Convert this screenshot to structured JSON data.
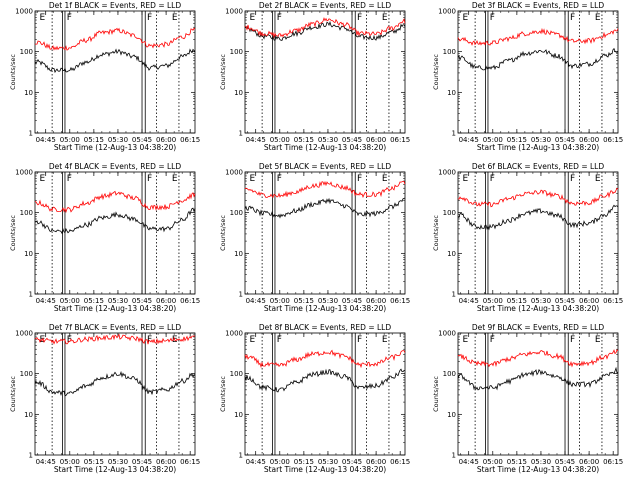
{
  "figure": {
    "title_suffix": "BLACK = Events, RED = LLD",
    "xlabel": "Start Time (12-Aug-13 04:38:20)",
    "ylabel": "Counts/sec",
    "x_ticks": [
      "04:45",
      "05:00",
      "05:15",
      "05:30",
      "05:45",
      "06:00",
      "06:15"
    ],
    "y_ticks": [
      "1",
      "10",
      "100",
      "1000"
    ],
    "marker_labels": [
      "E",
      "F",
      "F",
      "E"
    ],
    "colors": {
      "events": "#000000",
      "lld": "#ff0000",
      "axes": "#000000"
    }
  },
  "chart_data": [
    {
      "type": "line",
      "title": "Det 1f BLACK = Events, RED = LLD",
      "y_scale": "log",
      "ylim": [
        1,
        1000
      ],
      "x": [
        "04:40",
        "04:50",
        "05:00",
        "05:10",
        "05:20",
        "05:30",
        "05:40",
        "05:50",
        "06:00",
        "06:10",
        "06:17"
      ],
      "series": [
        {
          "name": "Events",
          "color": "#000000",
          "values": [
            55,
            35,
            35,
            55,
            85,
            100,
            75,
            40,
            45,
            75,
            110
          ]
        },
        {
          "name": "LLD",
          "color": "#ff0000",
          "values": [
            170,
            120,
            125,
            190,
            290,
            330,
            250,
            140,
            150,
            230,
            330
          ]
        }
      ]
    },
    {
      "type": "line",
      "title": "Det 2f BLACK = Events, RED = LLD",
      "y_scale": "log",
      "ylim": [
        1,
        1000
      ],
      "x": [
        "04:40",
        "04:50",
        "05:00",
        "05:10",
        "05:20",
        "05:30",
        "05:40",
        "05:50",
        "06:00",
        "06:10",
        "06:17"
      ],
      "series": [
        {
          "name": "Events",
          "color": "#000000",
          "values": [
            360,
            240,
            210,
            280,
            400,
            470,
            380,
            230,
            220,
            300,
            420
          ]
        },
        {
          "name": "LLD",
          "color": "#ff0000",
          "values": [
            400,
            280,
            250,
            330,
            470,
            620,
            470,
            280,
            270,
            380,
            560
          ]
        }
      ]
    },
    {
      "type": "line",
      "title": "Det 3f BLACK = Events, RED = LLD",
      "y_scale": "log",
      "ylim": [
        1,
        1000
      ],
      "x": [
        "04:40",
        "04:50",
        "05:00",
        "05:10",
        "05:20",
        "05:30",
        "05:40",
        "05:50",
        "06:00",
        "06:10",
        "06:17"
      ],
      "series": [
        {
          "name": "Events",
          "color": "#000000",
          "values": [
            70,
            40,
            40,
            60,
            90,
            105,
            80,
            45,
            50,
            80,
            110
          ]
        },
        {
          "name": "LLD",
          "color": "#ff0000",
          "values": [
            200,
            160,
            165,
            210,
            280,
            320,
            260,
            180,
            185,
            250,
            330
          ]
        }
      ]
    },
    {
      "type": "line",
      "title": "Det 4f BLACK = Events, RED = LLD",
      "y_scale": "log",
      "ylim": [
        1,
        1000
      ],
      "x": [
        "04:40",
        "04:50",
        "05:00",
        "05:10",
        "05:20",
        "05:30",
        "05:40",
        "05:50",
        "06:00",
        "06:10",
        "06:17"
      ],
      "series": [
        {
          "name": "Events",
          "color": "#000000",
          "values": [
            60,
            35,
            35,
            50,
            75,
            90,
            70,
            40,
            40,
            65,
            115
          ]
        },
        {
          "name": "LLD",
          "color": "#ff0000",
          "values": [
            175,
            120,
            120,
            170,
            250,
            300,
            230,
            135,
            140,
            200,
            270
          ]
        }
      ]
    },
    {
      "type": "line",
      "title": "Det 5f BLACK = Events, RED = LLD",
      "y_scale": "log",
      "ylim": [
        1,
        1000
      ],
      "x": [
        "04:40",
        "04:50",
        "05:00",
        "05:10",
        "05:20",
        "05:30",
        "05:40",
        "05:50",
        "06:00",
        "06:10",
        "06:17"
      ],
      "series": [
        {
          "name": "Events",
          "color": "#000000",
          "values": [
            130,
            95,
            85,
            110,
            160,
            200,
            150,
            90,
            95,
            140,
            200
          ]
        },
        {
          "name": "LLD",
          "color": "#ff0000",
          "values": [
            370,
            270,
            260,
            320,
            450,
            530,
            420,
            280,
            280,
            390,
            560
          ]
        }
      ]
    },
    {
      "type": "line",
      "title": "Det 6f BLACK = Events, RED = LLD",
      "y_scale": "log",
      "ylim": [
        1,
        1000
      ],
      "x": [
        "04:40",
        "04:50",
        "05:00",
        "05:10",
        "05:20",
        "05:30",
        "05:40",
        "05:50",
        "06:00",
        "06:10",
        "06:17"
      ],
      "series": [
        {
          "name": "Events",
          "color": "#000000",
          "values": [
            85,
            45,
            45,
            65,
            95,
            110,
            85,
            50,
            55,
            90,
            145
          ]
        },
        {
          "name": "LLD",
          "color": "#ff0000",
          "values": [
            240,
            160,
            160,
            220,
            290,
            320,
            260,
            170,
            175,
            260,
            360
          ]
        }
      ]
    },
    {
      "type": "line",
      "title": "Det 7f BLACK = Events, RED = LLD",
      "y_scale": "log",
      "ylim": [
        1,
        1000
      ],
      "x": [
        "04:40",
        "04:50",
        "05:00",
        "05:10",
        "05:20",
        "05:30",
        "05:40",
        "05:50",
        "06:00",
        "06:10",
        "06:17"
      ],
      "series": [
        {
          "name": "Events",
          "color": "#000000",
          "values": [
            60,
            35,
            32,
            50,
            80,
            100,
            75,
            35,
            40,
            65,
            95
          ]
        },
        {
          "name": "LLD",
          "color": "#ff0000",
          "values": [
            680,
            620,
            620,
            700,
            760,
            800,
            740,
            600,
            640,
            720,
            780
          ]
        }
      ]
    },
    {
      "type": "line",
      "title": "Det 8f BLACK = Events, RED = LLD",
      "y_scale": "log",
      "ylim": [
        1,
        1000
      ],
      "x": [
        "04:40",
        "04:50",
        "05:00",
        "05:10",
        "05:20",
        "05:30",
        "05:40",
        "05:50",
        "06:00",
        "06:10",
        "06:17"
      ],
      "series": [
        {
          "name": "Events",
          "color": "#000000",
          "values": [
            80,
            45,
            40,
            60,
            95,
            110,
            85,
            45,
            50,
            80,
            120
          ]
        },
        {
          "name": "LLD",
          "color": "#ff0000",
          "values": [
            260,
            165,
            160,
            220,
            300,
            340,
            270,
            165,
            175,
            250,
            330
          ]
        }
      ]
    },
    {
      "type": "line",
      "title": "Det 9f BLACK = Events, RED = LLD",
      "y_scale": "log",
      "ylim": [
        1,
        1000
      ],
      "x": [
        "04:40",
        "04:50",
        "05:00",
        "05:10",
        "05:20",
        "05:30",
        "05:40",
        "05:50",
        "06:00",
        "06:10",
        "06:17"
      ],
      "series": [
        {
          "name": "Events",
          "color": "#000000",
          "values": [
            85,
            45,
            45,
            65,
            95,
            110,
            85,
            55,
            55,
            85,
            120
          ]
        },
        {
          "name": "LLD",
          "color": "#ff0000",
          "values": [
            260,
            175,
            170,
            230,
            300,
            340,
            270,
            175,
            185,
            260,
            340
          ]
        }
      ]
    }
  ]
}
